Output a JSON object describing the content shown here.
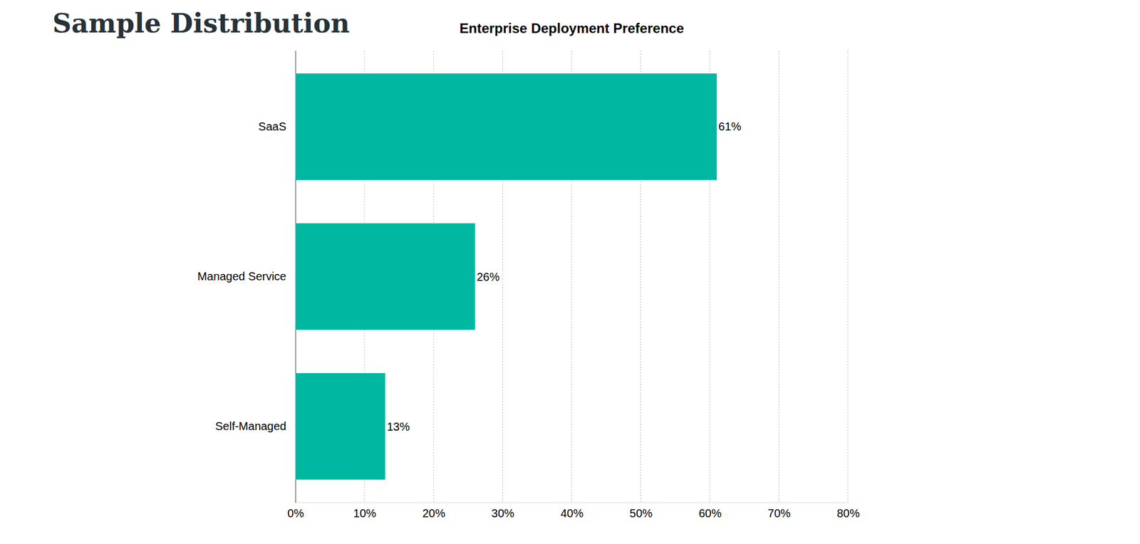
{
  "heading": "Sample Distribution",
  "chart_data": {
    "type": "bar",
    "title": "Enterprise Deployment Preference",
    "orientation": "horizontal",
    "categories": [
      "SaaS",
      "Managed Service",
      "Self-Managed"
    ],
    "values": [
      61,
      26,
      13
    ],
    "value_labels": [
      "61%",
      "26%",
      "13%"
    ],
    "color": "#00b8a1",
    "xlim": [
      0,
      80
    ],
    "xticks": [
      {
        "value": 0,
        "label": "0%"
      },
      {
        "value": 10,
        "label": "10%"
      },
      {
        "value": 20,
        "label": "20%"
      },
      {
        "value": 30,
        "label": "30%"
      },
      {
        "value": 40,
        "label": "40%"
      },
      {
        "value": 50,
        "label": "50%"
      },
      {
        "value": 60,
        "label": "60%"
      },
      {
        "value": 70,
        "label": "70%"
      },
      {
        "value": 80,
        "label": "80%"
      }
    ],
    "grid": true,
    "data_labels": true
  }
}
